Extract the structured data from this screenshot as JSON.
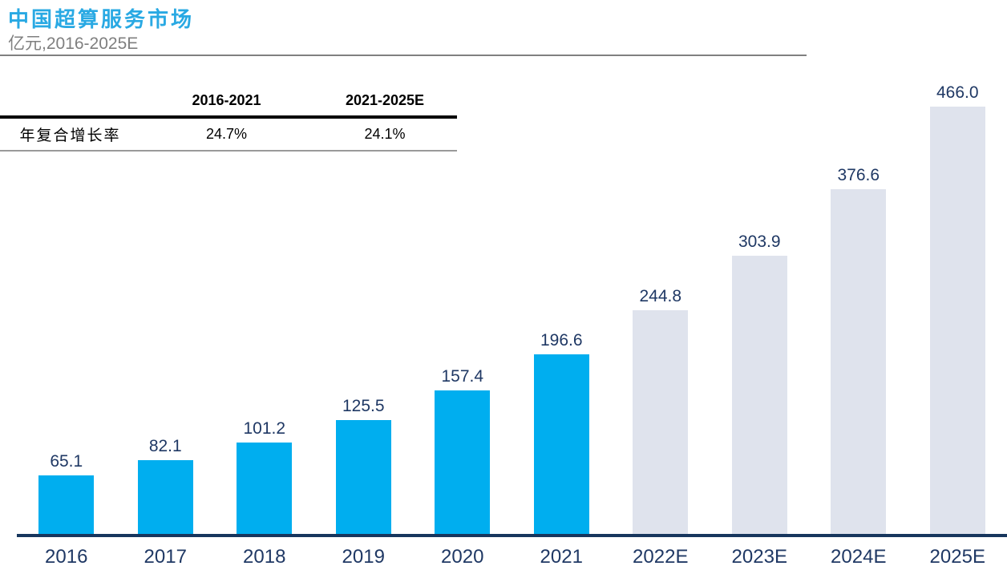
{
  "header": {
    "title": "中国超算服务市场",
    "subtitle": "亿元,2016-2025E"
  },
  "cagr_table": {
    "row_label": "年复合增长率",
    "columns": [
      "2016-2021",
      "2021-2025E"
    ],
    "values": [
      "24.7%",
      "24.1%"
    ]
  },
  "chart_data": {
    "type": "bar",
    "title": "中国超算服务市场",
    "unit_label": "亿元",
    "x_range_label": "2016-2025E",
    "categories": [
      "2016",
      "2017",
      "2018",
      "2019",
      "2020",
      "2021",
      "2022E",
      "2023E",
      "2024E",
      "2025E"
    ],
    "values": [
      65.1,
      82.1,
      101.2,
      125.5,
      157.4,
      196.6,
      244.8,
      303.9,
      376.6,
      466.0
    ],
    "value_labels": [
      "65.1",
      "82.1",
      "101.2",
      "125.5",
      "157.4",
      "196.6",
      "244.8",
      "303.9",
      "376.6",
      "466.0"
    ],
    "series": [
      {
        "name": "actual",
        "categories": [
          "2016",
          "2017",
          "2018",
          "2019",
          "2020",
          "2021"
        ],
        "color": "#00AEEF"
      },
      {
        "name": "estimate",
        "categories": [
          "2022E",
          "2023E",
          "2024E",
          "2025E"
        ],
        "color": "#DFE3ED"
      }
    ],
    "actual_count": 6,
    "ylim": [
      0,
      466
    ],
    "grid": false,
    "legend": false,
    "xlabel": "",
    "ylabel": "亿元"
  },
  "colors": {
    "title_blue": "#29A9E3",
    "subtitle_gray": "#7F7F7F",
    "bar_actual": "#00AEEF",
    "bar_estimate": "#DFE3ED",
    "data_label_navy": "#1F3864",
    "axis_navy": "#17365D"
  }
}
